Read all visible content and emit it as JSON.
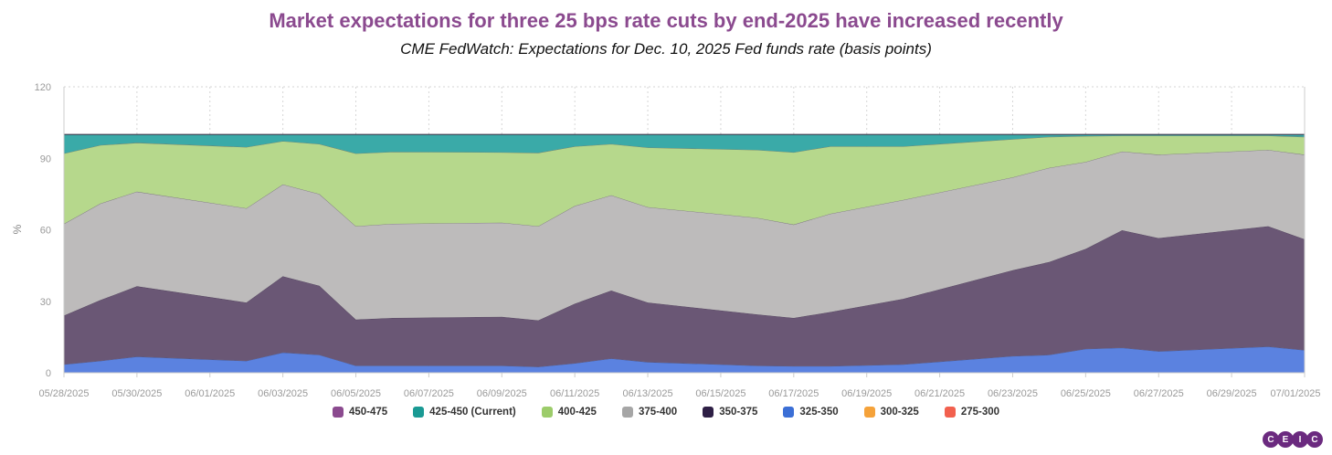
{
  "chart_data": {
    "type": "area",
    "title": "Market expectations for three 25 bps rate cuts by end-2025 have increased recently",
    "subtitle": "CME FedWatch: Expectations for Dec. 10, 2025 Fed funds rate (basis points)",
    "ylabel": "%",
    "ylim": [
      0,
      120
    ],
    "yticks": [
      0,
      30,
      60,
      90,
      120
    ],
    "x_tick_labels": [
      "05/28/2025",
      "05/30/2025",
      "06/01/2025",
      "06/03/2025",
      "06/05/2025",
      "06/07/2025",
      "06/09/2025",
      "06/11/2025",
      "06/13/2025",
      "06/15/2025",
      "06/17/2025",
      "06/19/2025",
      "06/21/2025",
      "06/23/2025",
      "06/25/2025",
      "06/27/2025",
      "06/29/2025",
      "07/01/2025"
    ],
    "x": [
      "05/28/2025",
      "05/29/2025",
      "05/30/2025",
      "06/02/2025",
      "06/03/2025",
      "06/04/2025",
      "06/05/2025",
      "06/06/2025",
      "06/09/2025",
      "06/10/2025",
      "06/11/2025",
      "06/12/2025",
      "06/13/2025",
      "06/16/2025",
      "06/17/2025",
      "06/18/2025",
      "06/20/2025",
      "06/23/2025",
      "06/24/2025",
      "06/25/2025",
      "06/26/2025",
      "06/27/2025",
      "06/30/2025",
      "07/01/2025"
    ],
    "stacking": "cumulative",
    "grid": true,
    "legend_position": "bottom",
    "series": [
      {
        "name": "325-350",
        "color": "#5b82e0",
        "values": [
          3.5,
          5,
          6.8,
          5,
          8.5,
          7.5,
          3,
          3,
          3,
          2.5,
          4,
          6,
          4.5,
          3,
          2.8,
          2.8,
          3.5,
          7,
          7.5,
          10,
          10.5,
          9,
          11,
          9.5
        ]
      },
      {
        "name": "350-375",
        "color": "#6a5775",
        "values": [
          20.5,
          25.5,
          29.5,
          24.5,
          32,
          29,
          19.3,
          20,
          20.5,
          19.5,
          25,
          28.5,
          25,
          21.5,
          20.2,
          22.7,
          27.5,
          36,
          39,
          42,
          49.3,
          47.5,
          50.5,
          46.5
        ]
      },
      {
        "name": "375-400",
        "color": "#bdbbbb",
        "values": [
          38.5,
          40.5,
          39.7,
          39.5,
          38.5,
          38.5,
          39.2,
          39.5,
          39.5,
          39.5,
          41,
          40,
          40,
          40.5,
          39.2,
          41.2,
          41.5,
          39,
          39.5,
          36.5,
          33,
          35,
          32,
          35.5
        ]
      },
      {
        "name": "400-425",
        "color": "#b6d88c",
        "values": [
          29.5,
          24.5,
          20.5,
          25.7,
          18.2,
          21,
          30.5,
          30.2,
          29.5,
          30.8,
          25,
          21.5,
          25,
          28.5,
          30.3,
          28.3,
          22.5,
          16,
          13,
          10.8,
          6.7,
          8,
          6,
          7.5
        ]
      },
      {
        "name": "425-450 (Current)",
        "color": "#3aaaa8",
        "values": [
          8,
          4.5,
          3.5,
          5.3,
          2.8,
          4,
          8,
          7.3,
          7.5,
          7.7,
          5,
          4,
          5.5,
          6.5,
          7.5,
          5,
          5,
          2,
          1,
          0.7,
          0.5,
          0.5,
          0.5,
          1
        ]
      },
      {
        "name": "450-475",
        "color": "#8b4a8f",
        "values": [
          0,
          0,
          0,
          0,
          0,
          0,
          0,
          0,
          0,
          0,
          0,
          0,
          0,
          0,
          0,
          0,
          0,
          0,
          0,
          0,
          0,
          0,
          0,
          0
        ]
      },
      {
        "name": "300-325",
        "color": "#f5a23a",
        "values": [
          0,
          0,
          0,
          0,
          0,
          0,
          0,
          0,
          0,
          0,
          0,
          0,
          0,
          0,
          0,
          0,
          0,
          0,
          0,
          0,
          0,
          0,
          0,
          0
        ]
      },
      {
        "name": "275-300",
        "color": "#f2604e",
        "values": [
          0,
          0,
          0,
          0,
          0,
          0,
          0,
          0,
          0,
          0,
          0,
          0,
          0,
          0,
          0,
          0,
          0,
          0,
          0,
          0,
          0,
          0,
          0,
          0
        ]
      }
    ],
    "legend": [
      {
        "name": "450-475",
        "color": "#8b4a8f"
      },
      {
        "name": "425-450 (Current)",
        "color": "#1a9a94"
      },
      {
        "name": "400-425",
        "color": "#9ccc6a"
      },
      {
        "name": "375-400",
        "color": "#a6a6a6"
      },
      {
        "name": "350-375",
        "color": "#2e1f45"
      },
      {
        "name": "325-350",
        "color": "#3b6fd6"
      },
      {
        "name": "300-325",
        "color": "#f5a23a"
      },
      {
        "name": "275-300",
        "color": "#f2604e"
      }
    ]
  },
  "logo": {
    "letters": [
      "C",
      "E",
      "I",
      "C"
    ],
    "color": "#6b2a7f"
  }
}
